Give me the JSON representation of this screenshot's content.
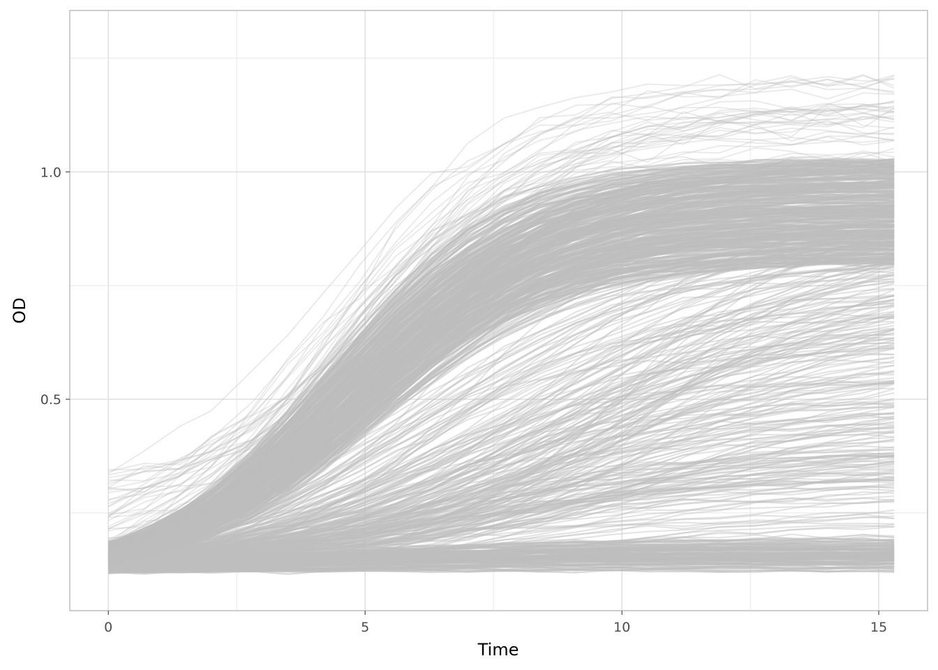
{
  "chart_data": {
    "type": "line",
    "title": "",
    "xlabel": "Time",
    "ylabel": "OD",
    "xlim": [
      -0.75,
      15.95
    ],
    "ylim": [
      0.035,
      1.355
    ],
    "x_ticks": [
      0,
      5,
      10,
      15
    ],
    "x_tick_labels": [
      "0",
      "5",
      "10",
      "15"
    ],
    "y_ticks": [
      0.5,
      1.0
    ],
    "y_tick_labels": [
      "0.5",
      "1.0"
    ],
    "x_minor_ticks": [
      2.5,
      7.5,
      12.5
    ],
    "y_minor_ticks": [
      0.25,
      0.75,
      1.25
    ],
    "grid": true,
    "legend": "none",
    "line_color": "#BEBEBE",
    "x": [
      0,
      0.7,
      1.4,
      2.0,
      2.8,
      3.5,
      4.2,
      4.9,
      5.6,
      6.3,
      7.0,
      7.7,
      8.4,
      9.1,
      9.8,
      10.5,
      11.2,
      11.9,
      12.6,
      13.3,
      14.0,
      14.7,
      15.3
    ],
    "series_summary": {
      "count": "many overlapping growth curves",
      "description_of_bands": [
        {
          "name": "flat",
          "start": [
            0.125,
            0.16
          ],
          "end": [
            0.125,
            0.16
          ]
        },
        {
          "name": "slow",
          "start": [
            0.125,
            0.17
          ],
          "end": [
            0.17,
            0.8
          ]
        },
        {
          "name": "fast",
          "start": [
            0.135,
            0.185
          ],
          "end": [
            0.78,
            1.03
          ]
        },
        {
          "name": "outlier-high",
          "start": [
            0.2,
            0.35
          ],
          "end": [
            1.05,
            1.22
          ]
        }
      ]
    }
  }
}
